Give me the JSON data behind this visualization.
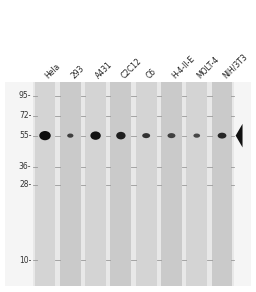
{
  "lanes": [
    "Hela",
    "293",
    "A431",
    "C2C12",
    "C6",
    "H-4-II-E",
    "MOLT-4",
    "NIH/3T3"
  ],
  "mw_markers": [
    95,
    72,
    55,
    36,
    28,
    10
  ],
  "mw_labels": [
    "95-",
    "72-",
    "55-",
    "36-",
    "28-",
    "10-"
  ],
  "band_mw": 55,
  "band_widths": [
    0.55,
    0.3,
    0.5,
    0.45,
    0.38,
    0.38,
    0.32,
    0.42
  ],
  "band_heights": [
    0.055,
    0.025,
    0.05,
    0.045,
    0.03,
    0.03,
    0.025,
    0.035
  ],
  "band_darkness": [
    0.95,
    0.75,
    0.92,
    0.88,
    0.8,
    0.75,
    0.72,
    0.85
  ],
  "gel_bg": "#e8e8e8",
  "lane_bg_odd": "#d4d4d4",
  "lane_bg_even": "#cacaca",
  "outer_bg": "#f5f5f5",
  "tick_color": "#999999",
  "label_color": "#222222",
  "arrow_color": "#111111",
  "mw_label_color": "#333333",
  "fig_bg": "#ffffff",
  "ylim_min": 7,
  "ylim_max": 115
}
